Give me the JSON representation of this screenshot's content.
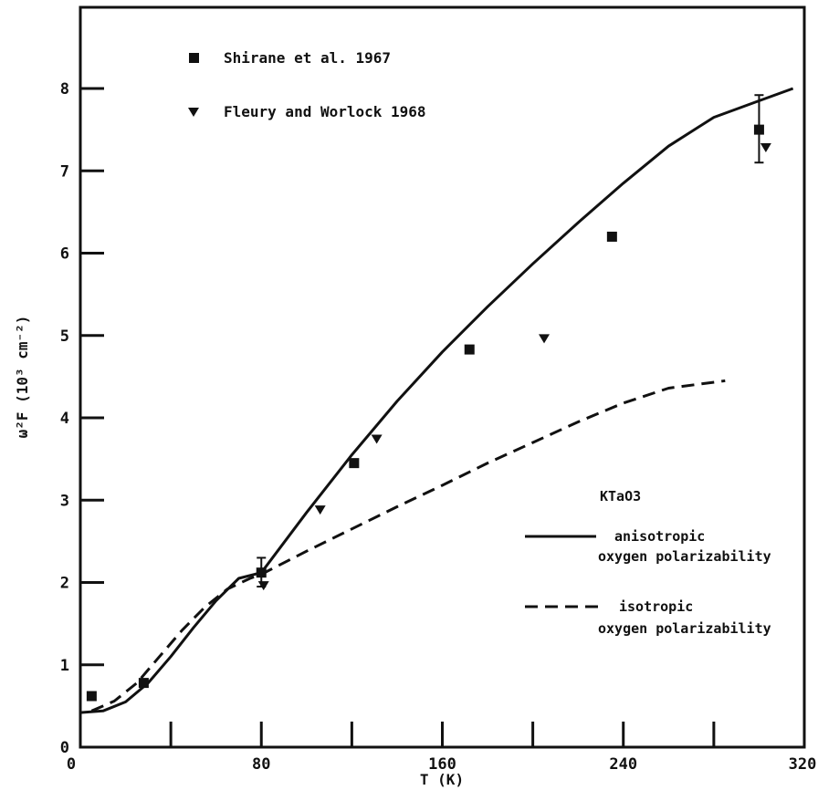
{
  "chart_data": {
    "type": "scatter",
    "xlabel": "T (K)",
    "ylabel": "ω²F (10³ cm⁻²)",
    "xlim": [
      0,
      320
    ],
    "ylim": [
      0,
      9
    ],
    "x_ticks": [
      "0",
      "80",
      "160",
      "240",
      "320"
    ],
    "y_ticks": [
      "0",
      "1",
      "2",
      "3",
      "4",
      "5",
      "6",
      "7",
      "8"
    ],
    "grid": false,
    "legend_placement": "top-left",
    "series": [
      {
        "name": "Shirane et al. 1967",
        "marker": "square",
        "points": [
          [
            5,
            0.62
          ],
          [
            28,
            0.78
          ],
          [
            80,
            2.12
          ],
          [
            121,
            3.45
          ],
          [
            172,
            4.83
          ],
          [
            235,
            6.2
          ],
          [
            300,
            7.5
          ]
        ],
        "error_bars": [
          [
            80,
            1.95,
            2.3
          ],
          [
            300,
            7.1,
            7.92
          ]
        ]
      },
      {
        "name": "Fleury and Worlock 1968",
        "marker": "triangle-down",
        "points": [
          [
            81,
            1.96
          ],
          [
            106,
            2.88
          ],
          [
            131,
            3.74
          ],
          [
            205,
            4.96
          ],
          [
            303,
            7.28
          ]
        ]
      }
    ],
    "curves": [
      {
        "name": "anisotropic oxygen polarizability",
        "style": "solid",
        "points": [
          [
            0,
            0.42
          ],
          [
            10,
            0.44
          ],
          [
            20,
            0.55
          ],
          [
            30,
            0.78
          ],
          [
            40,
            1.1
          ],
          [
            50,
            1.45
          ],
          [
            60,
            1.78
          ],
          [
            70,
            2.05
          ],
          [
            80,
            2.12
          ],
          [
            100,
            2.85
          ],
          [
            120,
            3.55
          ],
          [
            140,
            4.2
          ],
          [
            160,
            4.8
          ],
          [
            180,
            5.35
          ],
          [
            200,
            5.87
          ],
          [
            220,
            6.37
          ],
          [
            240,
            6.85
          ],
          [
            260,
            7.3
          ],
          [
            280,
            7.65
          ],
          [
            300,
            7.85
          ],
          [
            315,
            8.0
          ]
        ]
      },
      {
        "name": "isotropic oxygen polarizability",
        "style": "dashed",
        "points": [
          [
            5,
            0.44
          ],
          [
            15,
            0.56
          ],
          [
            25,
            0.78
          ],
          [
            35,
            1.1
          ],
          [
            45,
            1.42
          ],
          [
            55,
            1.7
          ],
          [
            65,
            1.92
          ],
          [
            75,
            2.05
          ],
          [
            80,
            2.1
          ],
          [
            100,
            2.38
          ],
          [
            120,
            2.65
          ],
          [
            140,
            2.92
          ],
          [
            160,
            3.18
          ],
          [
            180,
            3.45
          ],
          [
            200,
            3.7
          ],
          [
            220,
            3.95
          ],
          [
            240,
            4.18
          ],
          [
            260,
            4.36
          ],
          [
            285,
            4.45
          ]
        ]
      }
    ],
    "annotations": {
      "compound": "KTaO3",
      "anisotropic_label_1": "anisotropic",
      "anisotropic_label_2": "oxygen polarizability",
      "isotropic_label_1": "isotropic",
      "isotropic_label_2": "oxygen polarizability"
    }
  },
  "colors": {
    "ink": "#111111",
    "background": "#ffffff"
  }
}
